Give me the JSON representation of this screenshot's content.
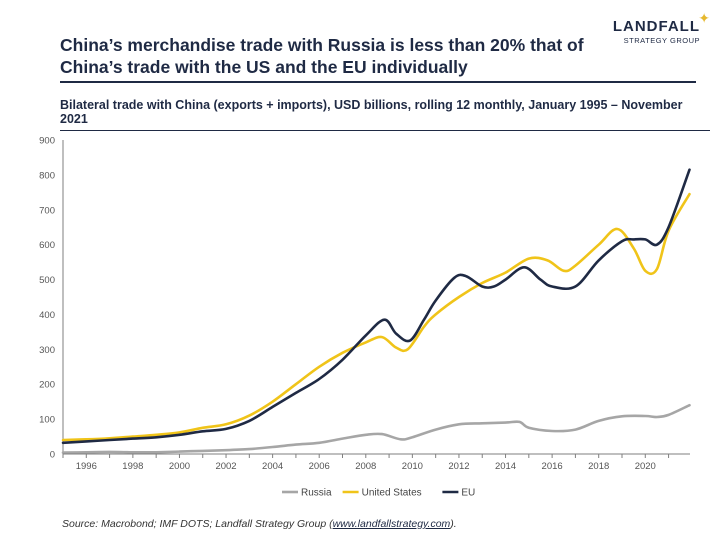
{
  "header": {
    "title": "China’s merchandise trade with Russia is less than 20% that of China’s trade with the US and the EU individually",
    "logo_name": "LANDFALL",
    "logo_sub": "STRATEGY GROUP"
  },
  "subtitle": "Bilateral trade with China (exports + imports), USD billions, rolling 12 monthly, January 1995 – November 2021",
  "footer": {
    "source_prefix": "Source: Macrobond; IMF DOTS; Landfall Strategy Group (",
    "source_link": "www.landfallstrategy.com",
    "source_suffix": ")."
  },
  "colors": {
    "russia": "#a6a6a6",
    "us": "#f0c419",
    "eu": "#1f2a44",
    "axis": "#7f7f7f"
  },
  "chart_data": {
    "type": "line",
    "title": "Bilateral trade with China (exports + imports), USD billions, rolling 12 monthly, January 1995 – November 2021",
    "xlabel": "",
    "ylabel": "USD billions",
    "xlim": [
      1995,
      2021.92
    ],
    "ylim": [
      0,
      900
    ],
    "yticks": [
      0,
      100,
      200,
      300,
      400,
      500,
      600,
      700,
      800,
      900
    ],
    "xticks": [
      "1996",
      "1998",
      "2000",
      "2002",
      "2004",
      "2006",
      "2008",
      "2010",
      "2012",
      "2014",
      "2016",
      "2018",
      "2020"
    ],
    "legend_position": "bottom",
    "series": [
      {
        "name": "Russia",
        "x": [
          1995,
          1996,
          1997,
          1998,
          1999,
          2000,
          2001,
          2002,
          2003,
          2004,
          2005,
          2006,
          2007,
          2008,
          2008.7,
          2009.5,
          2010,
          2011,
          2012,
          2013,
          2014,
          2014.6,
          2015,
          2016,
          2017,
          2018,
          2019,
          2020,
          2020.5,
          2021,
          2021.9
        ],
        "values": [
          4,
          5,
          6,
          5,
          5,
          7,
          9,
          11,
          14,
          20,
          27,
          32,
          44,
          55,
          57,
          42,
          48,
          70,
          85,
          88,
          90,
          92,
          75,
          66,
          70,
          95,
          108,
          109,
          106,
          112,
          140
        ]
      },
      {
        "name": "United States",
        "x": [
          1995,
          1996,
          1997,
          1998,
          1999,
          2000,
          2001,
          2002,
          2003,
          2004,
          2005,
          2006,
          2007,
          2008,
          2008.7,
          2009.3,
          2009.8,
          2010.5,
          2011,
          2012,
          2013,
          2014,
          2015,
          2015.8,
          2016.5,
          2017,
          2018,
          2018.8,
          2019.5,
          2020,
          2020.5,
          2021,
          2021.9
        ],
        "values": [
          40,
          42,
          45,
          50,
          55,
          62,
          75,
          85,
          110,
          150,
          200,
          250,
          290,
          320,
          335,
          305,
          300,
          365,
          400,
          450,
          490,
          520,
          560,
          555,
          525,
          540,
          600,
          645,
          590,
          525,
          530,
          640,
          745
        ]
      },
      {
        "name": "EU",
        "x": [
          1995,
          1996,
          1997,
          1998,
          1999,
          2000,
          2001,
          2002,
          2003,
          2004,
          2005,
          2006,
          2007,
          2008,
          2008.8,
          2009.3,
          2009.9,
          2010.5,
          2011,
          2011.8,
          2012.3,
          2013,
          2013.5,
          2014,
          2014.8,
          2015.5,
          2016,
          2017,
          2018,
          2019,
          2019.5,
          2020,
          2020.5,
          2021,
          2021.9
        ],
        "values": [
          32,
          36,
          40,
          44,
          48,
          55,
          65,
          72,
          95,
          135,
          175,
          215,
          270,
          340,
          385,
          345,
          325,
          385,
          440,
          505,
          510,
          480,
          480,
          500,
          535,
          500,
          480,
          480,
          555,
          610,
          615,
          615,
          600,
          650,
          815
        ]
      }
    ]
  }
}
